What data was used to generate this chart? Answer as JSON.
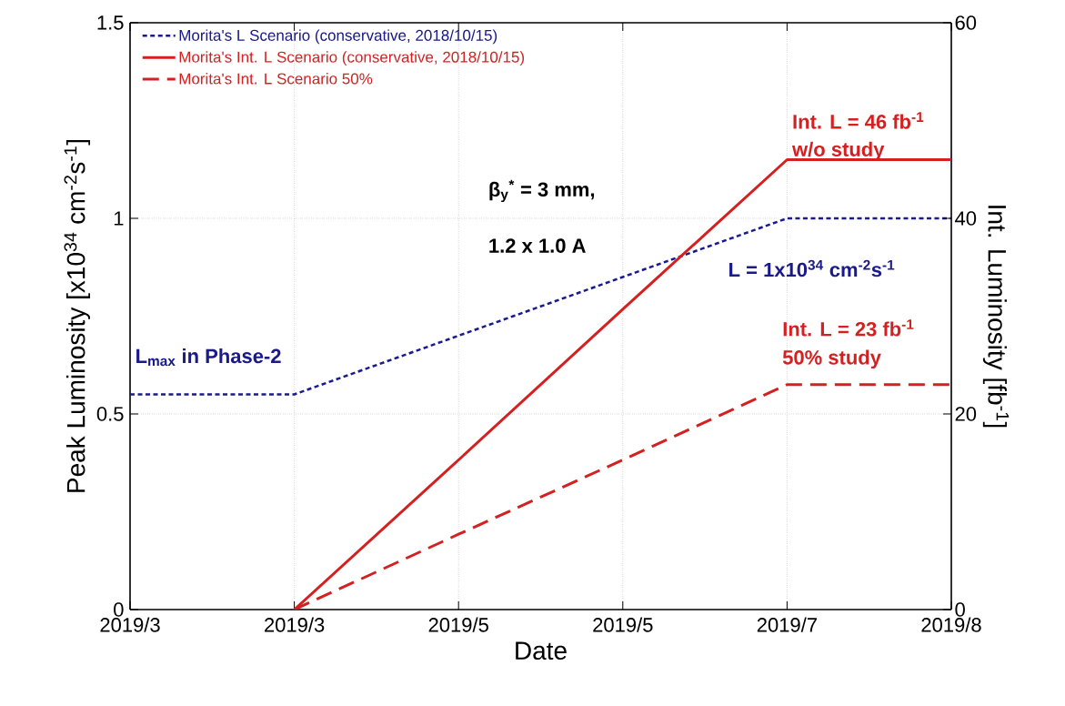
{
  "chart_data": {
    "type": "line",
    "xlabel": "Date",
    "ylabel": "Peak Luminosity [x10$^{34}$ cm$^{-2}$s$^{-1}$]",
    "y2label": "Int. Luminosity [fb$^{-1}$]",
    "categories": [
      "2019/3",
      "2019/3",
      "2019/5",
      "2019/5",
      "2019/7",
      "2019/8"
    ],
    "ylim": [
      0,
      1.5
    ],
    "yticks": [
      0,
      0.5,
      1,
      1.5
    ],
    "y2lim": [
      0,
      60
    ],
    "y2ticks": [
      0,
      20,
      40,
      60
    ],
    "grid": true,
    "legend": "top left",
    "series": [
      {
        "name": "Morita's L Scenario (conservative, 2018/10/15)",
        "color": "#1a1a8c",
        "line_style": "dotted",
        "values": [
          0.55,
          0.55,
          0.7,
          0.85,
          1.0,
          1.0
        ]
      },
      {
        "name": "Morita's Int. L Scenario (conservative, 2018/10/15)",
        "color": "#d42020",
        "line_style": "solid",
        "axis": "y2",
        "values": [
          null,
          0,
          15.3,
          30.7,
          46,
          46
        ]
      },
      {
        "name": "Morita's Int. L Scenario 50%",
        "color": "#d42020",
        "line_style": "dashed",
        "axis": "y2",
        "values": [
          null,
          0,
          7.7,
          15.3,
          23,
          23
        ]
      }
    ],
    "annotations": [
      "Int. L = 46 fb$^{-1}$",
      "w/o study",
      "β$_{y}$$^{*}$ = 3 mm,",
      "1.2 x 1.0 A",
      "L = 1x10$^{34}$ cm$^{-2}$s$^{-1}$",
      "Int. L = 23 fb$^{-1}$",
      "50% study",
      "L$_{max}$ in Phase-2"
    ]
  }
}
